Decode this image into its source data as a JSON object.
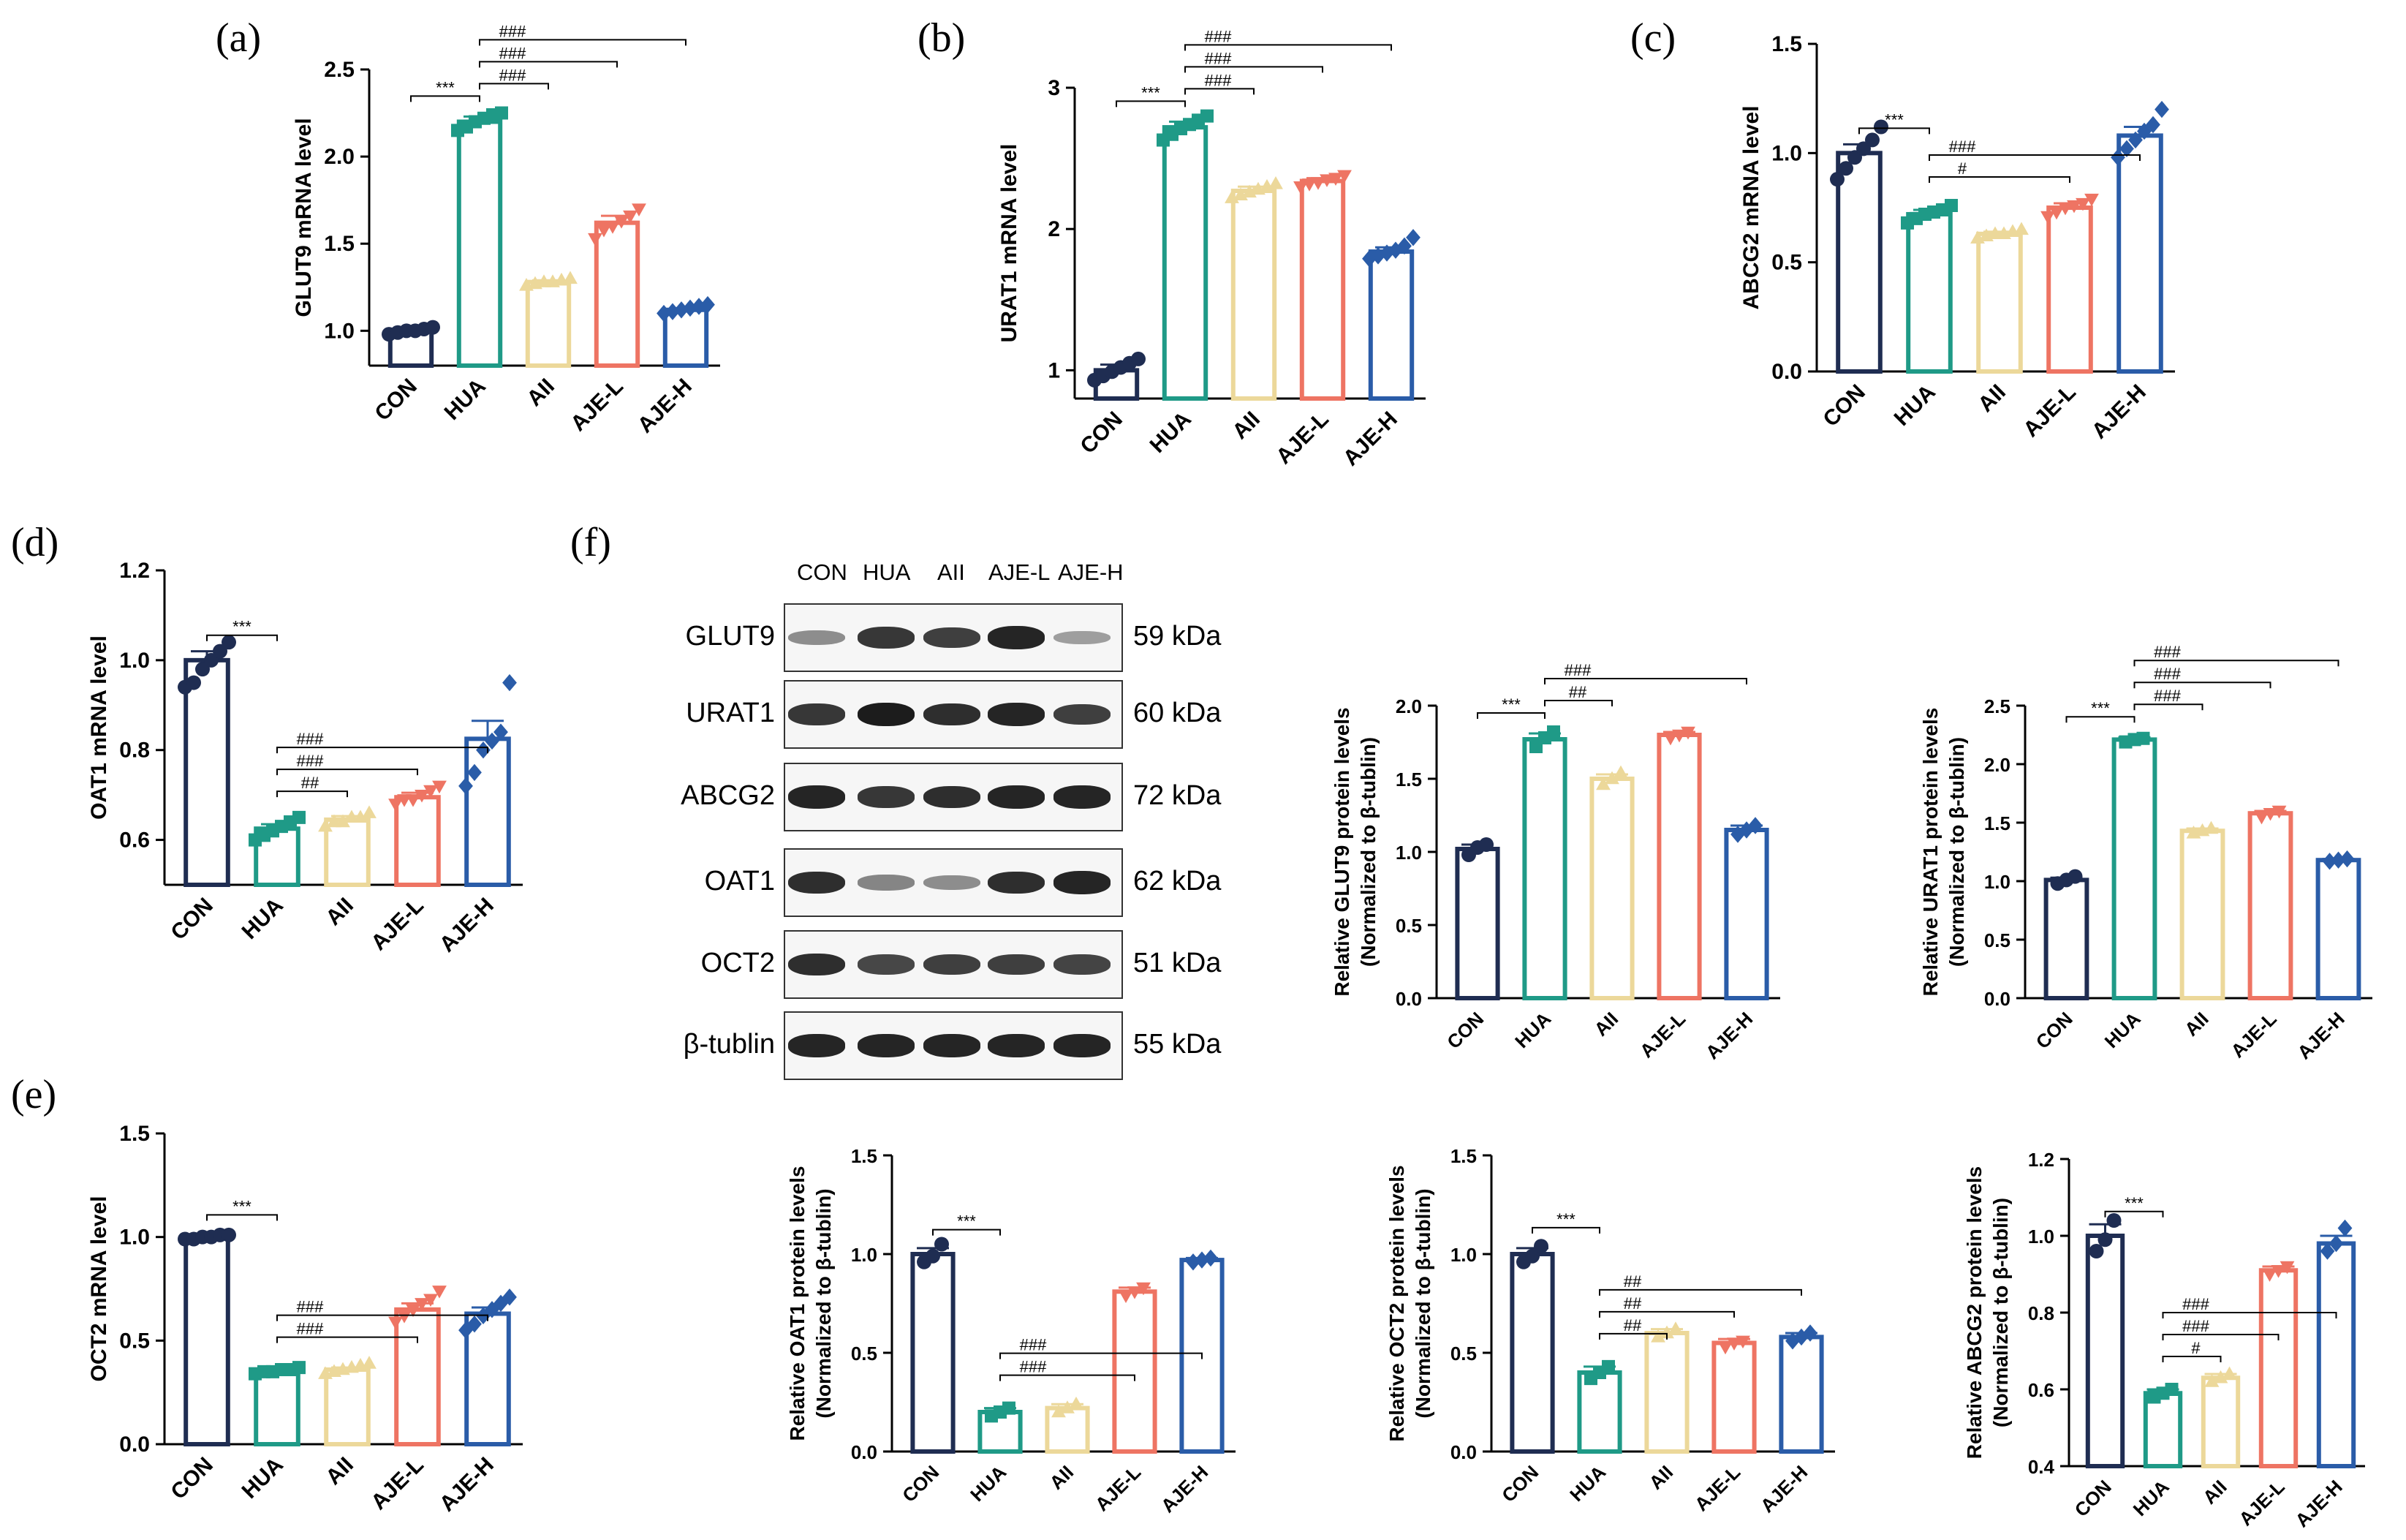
{
  "colors": {
    "CON": "#1f2d52",
    "HUA": "#1f9a87",
    "AII": "#ecd89a",
    "AJE-L": "#ee7463",
    "AJE-H": "#2a5ca8"
  },
  "panel_labels": {
    "a": "(a)",
    "b": "(b)",
    "c": "(c)",
    "d": "(d)",
    "e": "(e)",
    "f": "(f)"
  },
  "blot": {
    "lanes": [
      "CON",
      "HUA",
      "AII",
      "AJE-L",
      "AJE-H"
    ],
    "rows": [
      {
        "name": "GLUT9",
        "kda": "59 kDa",
        "intensity": [
          0.35,
          0.85,
          0.8,
          0.95,
          0.25
        ]
      },
      {
        "name": "URAT1",
        "kda": "60 kDa",
        "intensity": [
          0.85,
          1.0,
          0.9,
          0.95,
          0.8
        ]
      },
      {
        "name": "ABCG2",
        "kda": "72 kDa",
        "intensity": [
          0.95,
          0.85,
          0.9,
          0.95,
          0.95
        ]
      },
      {
        "name": "OAT1",
        "kda": "62 kDa",
        "intensity": [
          0.9,
          0.4,
          0.35,
          0.9,
          0.95
        ]
      },
      {
        "name": "OCT2",
        "kda": "51 kDa",
        "intensity": [
          0.9,
          0.75,
          0.8,
          0.8,
          0.78
        ]
      },
      {
        "name": "β-tublin",
        "kda": "55 kDa",
        "intensity": [
          0.95,
          0.95,
          0.95,
          0.95,
          0.95
        ]
      }
    ]
  },
  "chart_data": [
    {
      "id": "a",
      "type": "bar",
      "categories": [
        "CON",
        "HUA",
        "AII",
        "AJE-L",
        "AJE-H"
      ],
      "values": [
        1.0,
        2.2,
        1.28,
        1.62,
        1.12
      ],
      "errors": [
        0.01,
        0.03,
        0.01,
        0.04,
        0.01
      ],
      "ylabel": "GLUT9 mRNA level",
      "ylim": [
        0.8,
        2.5
      ],
      "yticks": [
        1.0,
        1.5,
        2.0,
        2.5
      ],
      "ytick_labels": [
        "1.0",
        "1.5",
        "2.0",
        "2.5"
      ],
      "points": [
        [
          0.98,
          0.99,
          1.0,
          1.0,
          1.01,
          1.02
        ],
        [
          2.15,
          2.17,
          2.2,
          2.22,
          2.24,
          2.25
        ],
        [
          1.26,
          1.27,
          1.28,
          1.28,
          1.29,
          1.3
        ],
        [
          1.53,
          1.58,
          1.6,
          1.63,
          1.66,
          1.7
        ],
        [
          1.1,
          1.11,
          1.12,
          1.13,
          1.14,
          1.15
        ]
      ],
      "markers": [
        "circle",
        "square",
        "triangle",
        "invtriangle",
        "diamond"
      ],
      "annotations": [
        {
          "from": 0,
          "to": 1,
          "text": "***"
        },
        {
          "from": 1,
          "to": 2,
          "text": "###"
        },
        {
          "from": 1,
          "to": 3,
          "text": "###"
        },
        {
          "from": 1,
          "to": 4,
          "text": "###"
        }
      ]
    },
    {
      "id": "b",
      "type": "bar",
      "categories": [
        "CON",
        "HUA",
        "AII",
        "AJE-L",
        "AJE-H"
      ],
      "values": [
        1.0,
        2.72,
        2.27,
        2.34,
        1.84
      ],
      "errors": [
        0.04,
        0.04,
        0.03,
        0.02,
        0.03
      ],
      "ylabel": "URAT1 mRNA level",
      "ylim": [
        0.8,
        3.0
      ],
      "yticks": [
        1,
        2,
        3
      ],
      "ytick_labels": [
        "1",
        "2",
        "3"
      ],
      "points": [
        [
          0.93,
          0.96,
          0.99,
          1.02,
          1.05,
          1.08
        ],
        [
          2.63,
          2.67,
          2.71,
          2.74,
          2.77,
          2.8
        ],
        [
          2.22,
          2.24,
          2.26,
          2.28,
          2.3,
          2.32
        ],
        [
          2.3,
          2.32,
          2.33,
          2.35,
          2.36,
          2.38
        ],
        [
          1.79,
          1.81,
          1.83,
          1.85,
          1.88,
          1.94
        ]
      ],
      "markers": [
        "circle",
        "square",
        "triangle",
        "invtriangle",
        "diamond"
      ],
      "annotations": [
        {
          "from": 0,
          "to": 1,
          "text": "***"
        },
        {
          "from": 1,
          "to": 2,
          "text": "###"
        },
        {
          "from": 1,
          "to": 3,
          "text": "###"
        },
        {
          "from": 1,
          "to": 4,
          "text": "###"
        }
      ]
    },
    {
      "id": "c",
      "type": "bar",
      "categories": [
        "CON",
        "HUA",
        "AII",
        "AJE-L",
        "AJE-H"
      ],
      "values": [
        1.0,
        0.72,
        0.63,
        0.75,
        1.08
      ],
      "errors": [
        0.04,
        0.02,
        0.01,
        0.02,
        0.04
      ],
      "ylabel": "ABCG2 mRNA level",
      "ylim": [
        0,
        1.5
      ],
      "yticks": [
        0,
        0.5,
        1.0,
        1.5
      ],
      "ytick_labels": [
        "0.0",
        "0.5",
        "1.0",
        "1.5"
      ],
      "points": [
        [
          0.88,
          0.93,
          0.98,
          1.02,
          1.06,
          1.12
        ],
        [
          0.68,
          0.7,
          0.72,
          0.73,
          0.74,
          0.76
        ],
        [
          0.61,
          0.62,
          0.63,
          0.63,
          0.64,
          0.65
        ],
        [
          0.71,
          0.73,
          0.75,
          0.76,
          0.77,
          0.79
        ],
        [
          0.98,
          1.02,
          1.06,
          1.1,
          1.13,
          1.2
        ]
      ],
      "markers": [
        "circle",
        "square",
        "triangle",
        "invtriangle",
        "diamond"
      ],
      "annotations": [
        {
          "from": 0,
          "to": 1,
          "text": "***"
        },
        {
          "from": 1,
          "to": 3,
          "text": "#"
        },
        {
          "from": 1,
          "to": 4,
          "text": "###"
        }
      ]
    },
    {
      "id": "d",
      "type": "bar",
      "categories": [
        "CON",
        "HUA",
        "AII",
        "AJE-L",
        "AJE-H"
      ],
      "values": [
        1.0,
        0.625,
        0.645,
        0.695,
        0.825
      ],
      "errors": [
        0.02,
        0.01,
        0.008,
        0.01,
        0.04
      ],
      "ylabel": "OAT1 mRNA level",
      "ylim": [
        0.5,
        1.2
      ],
      "yticks": [
        0.6,
        0.8,
        1.0,
        1.2
      ],
      "ytick_labels": [
        "0.6",
        "0.8",
        "1.0",
        "1.2"
      ],
      "points": [
        [
          0.94,
          0.95,
          0.98,
          1.0,
          1.02,
          1.04
        ],
        [
          0.6,
          0.61,
          0.62,
          0.63,
          0.64,
          0.65
        ],
        [
          0.63,
          0.64,
          0.64,
          0.65,
          0.65,
          0.66
        ],
        [
          0.68,
          0.69,
          0.69,
          0.7,
          0.71,
          0.72
        ],
        [
          0.72,
          0.75,
          0.8,
          0.82,
          0.84,
          0.95
        ]
      ],
      "markers": [
        "circle",
        "square",
        "triangle",
        "invtriangle",
        "diamond"
      ],
      "annotations": [
        {
          "from": 0,
          "to": 1,
          "text": "***"
        },
        {
          "from": 1,
          "to": 2,
          "text": "##"
        },
        {
          "from": 1,
          "to": 3,
          "text": "###"
        },
        {
          "from": 1,
          "to": 4,
          "text": "###"
        }
      ]
    },
    {
      "id": "e",
      "type": "bar",
      "categories": [
        "CON",
        "HUA",
        "AII",
        "AJE-L",
        "AJE-H"
      ],
      "values": [
        1.0,
        0.35,
        0.36,
        0.65,
        0.63
      ],
      "errors": [
        0.005,
        0.008,
        0.01,
        0.03,
        0.03
      ],
      "ylabel": "OCT2 mRNA level",
      "ylim": [
        0,
        1.5
      ],
      "yticks": [
        0,
        0.5,
        1.0,
        1.5
      ],
      "ytick_labels": [
        "0.0",
        "0.5",
        "1.0",
        "1.5"
      ],
      "points": [
        [
          0.99,
          0.99,
          1.0,
          1.0,
          1.01,
          1.01
        ],
        [
          0.34,
          0.35,
          0.35,
          0.36,
          0.36,
          0.37
        ],
        [
          0.34,
          0.35,
          0.36,
          0.37,
          0.38,
          0.39
        ],
        [
          0.59,
          0.62,
          0.65,
          0.68,
          0.7,
          0.74
        ],
        [
          0.55,
          0.58,
          0.62,
          0.65,
          0.68,
          0.71
        ]
      ],
      "markers": [
        "circle",
        "square",
        "triangle",
        "invtriangle",
        "diamond"
      ],
      "annotations": [
        {
          "from": 0,
          "to": 1,
          "text": "***"
        },
        {
          "from": 1,
          "to": 3,
          "text": "###"
        },
        {
          "from": 1,
          "to": 4,
          "text": "###"
        }
      ]
    },
    {
      "id": "f1",
      "type": "bar",
      "categories": [
        "CON",
        "HUA",
        "AII",
        "AJE-L",
        "AJE-H"
      ],
      "values": [
        1.02,
        1.77,
        1.5,
        1.8,
        1.15
      ],
      "errors": [
        0.03,
        0.04,
        0.03,
        0.02,
        0.03
      ],
      "ylabel": "Relative GLUT9 protein levels",
      "ylabel2": "(Normalized to β-tublin)",
      "ylim": [
        0,
        2.0
      ],
      "yticks": [
        0,
        0.5,
        1.0,
        1.5,
        2.0
      ],
      "ytick_labels": [
        "0.0",
        "0.5",
        "1.0",
        "1.5",
        "2.0"
      ],
      "points": [
        [
          0.98,
          1.03,
          1.05
        ],
        [
          1.72,
          1.78,
          1.82
        ],
        [
          1.46,
          1.5,
          1.54
        ],
        [
          1.78,
          1.8,
          1.82
        ],
        [
          1.12,
          1.15,
          1.18
        ]
      ],
      "markers": [
        "circle",
        "square",
        "triangle",
        "invtriangle",
        "diamond"
      ],
      "annotations": [
        {
          "from": 0,
          "to": 1,
          "text": "***"
        },
        {
          "from": 1,
          "to": 2,
          "text": "##"
        },
        {
          "from": 1,
          "to": 4,
          "text": "###"
        }
      ]
    },
    {
      "id": "f2",
      "type": "bar",
      "categories": [
        "CON",
        "HUA",
        "AII",
        "AJE-L",
        "AJE-H"
      ],
      "values": [
        1.01,
        2.21,
        1.43,
        1.58,
        1.18
      ],
      "errors": [
        0.02,
        0.02,
        0.02,
        0.02,
        0.01
      ],
      "ylabel": "Relative URAT1 protein levels",
      "ylabel2": "(Normalized to β-tublin)",
      "ylim": [
        0,
        2.5
      ],
      "yticks": [
        0,
        0.5,
        1.0,
        1.5,
        2.0,
        2.5
      ],
      "ytick_labels": [
        "0.0",
        "0.5",
        "1.0",
        "1.5",
        "2.0",
        "2.5"
      ],
      "points": [
        [
          0.98,
          1.01,
          1.04
        ],
        [
          2.19,
          2.21,
          2.22
        ],
        [
          1.41,
          1.43,
          1.45
        ],
        [
          1.55,
          1.58,
          1.6
        ],
        [
          1.17,
          1.18,
          1.19
        ]
      ],
      "markers": [
        "circle",
        "square",
        "triangle",
        "invtriangle",
        "diamond"
      ],
      "annotations": [
        {
          "from": 0,
          "to": 1,
          "text": "***"
        },
        {
          "from": 1,
          "to": 2,
          "text": "###"
        },
        {
          "from": 1,
          "to": 3,
          "text": "###"
        },
        {
          "from": 1,
          "to": 4,
          "text": "###"
        }
      ]
    },
    {
      "id": "f3",
      "type": "bar",
      "categories": [
        "CON",
        "HUA",
        "AII",
        "AJE-L",
        "AJE-H"
      ],
      "values": [
        1.0,
        0.2,
        0.22,
        0.81,
        0.97
      ],
      "errors": [
        0.03,
        0.02,
        0.02,
        0.02,
        0.01
      ],
      "ylabel": "Relative OAT1 protein levels",
      "ylabel2": "(Normalized to β-tublin)",
      "ylim": [
        0,
        1.5
      ],
      "yticks": [
        0,
        0.5,
        1.0,
        1.5
      ],
      "ytick_labels": [
        "0.0",
        "0.5",
        "1.0",
        "1.5"
      ],
      "points": [
        [
          0.96,
          0.99,
          1.05
        ],
        [
          0.18,
          0.2,
          0.22
        ],
        [
          0.2,
          0.22,
          0.24
        ],
        [
          0.79,
          0.81,
          0.83
        ],
        [
          0.96,
          0.97,
          0.98
        ]
      ],
      "markers": [
        "circle",
        "square",
        "triangle",
        "invtriangle",
        "diamond"
      ],
      "annotations": [
        {
          "from": 0,
          "to": 1,
          "text": "***"
        },
        {
          "from": 1,
          "to": 3,
          "text": "###"
        },
        {
          "from": 1,
          "to": 4,
          "text": "###"
        }
      ]
    },
    {
      "id": "f4",
      "type": "bar",
      "categories": [
        "CON",
        "HUA",
        "AII",
        "AJE-L",
        "AJE-H"
      ],
      "values": [
        1.0,
        0.4,
        0.6,
        0.55,
        0.58
      ],
      "errors": [
        0.03,
        0.03,
        0.02,
        0.02,
        0.02
      ],
      "ylabel": "Relative OCT2 protein levels",
      "ylabel2": "(Normalized to β-tublin)",
      "ylim": [
        0,
        1.5
      ],
      "yticks": [
        0,
        0.5,
        1.0,
        1.5
      ],
      "ytick_labels": [
        "0.0",
        "0.5",
        "1.0",
        "1.5"
      ],
      "points": [
        [
          0.96,
          0.99,
          1.04
        ],
        [
          0.37,
          0.4,
          0.43
        ],
        [
          0.58,
          0.6,
          0.62
        ],
        [
          0.53,
          0.55,
          0.56
        ],
        [
          0.56,
          0.58,
          0.6
        ]
      ],
      "markers": [
        "circle",
        "square",
        "triangle",
        "invtriangle",
        "diamond"
      ],
      "annotations": [
        {
          "from": 0,
          "to": 1,
          "text": "***"
        },
        {
          "from": 1,
          "to": 2,
          "text": "##"
        },
        {
          "from": 1,
          "to": 3,
          "text": "##"
        },
        {
          "from": 1,
          "to": 4,
          "text": "##"
        }
      ]
    },
    {
      "id": "f5",
      "type": "bar",
      "categories": [
        "CON",
        "HUA",
        "AII",
        "AJE-L",
        "AJE-H"
      ],
      "values": [
        1.0,
        0.59,
        0.63,
        0.91,
        0.98
      ],
      "errors": [
        0.03,
        0.01,
        0.01,
        0.01,
        0.02
      ],
      "ylabel": "Relative ABCG2 protein levels",
      "ylabel2": "(Normalized to β-tublin)",
      "ylim": [
        0.4,
        1.2
      ],
      "yticks": [
        0.4,
        0.6,
        0.8,
        1.0,
        1.2
      ],
      "ytick_labels": [
        "0.4",
        "0.6",
        "0.8",
        "1.0",
        "1.2"
      ],
      "points": [
        [
          0.96,
          0.99,
          1.04
        ],
        [
          0.58,
          0.59,
          0.6
        ],
        [
          0.62,
          0.63,
          0.64
        ],
        [
          0.9,
          0.91,
          0.92
        ],
        [
          0.96,
          0.98,
          1.02
        ]
      ],
      "markers": [
        "circle",
        "square",
        "triangle",
        "invtriangle",
        "diamond"
      ],
      "annotations": [
        {
          "from": 0,
          "to": 1,
          "text": "***"
        },
        {
          "from": 1,
          "to": 2,
          "text": "#"
        },
        {
          "from": 1,
          "to": 3,
          "text": "###"
        },
        {
          "from": 1,
          "to": 4,
          "text": "###"
        }
      ]
    }
  ]
}
